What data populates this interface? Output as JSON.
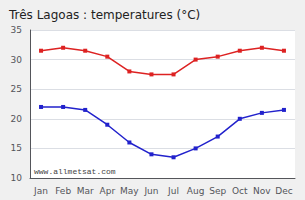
{
  "chart_data": {
    "type": "line",
    "title": "Três Lagoas : temperatures (°C)",
    "categories": [
      "Jan",
      "Feb",
      "Mar",
      "Apr",
      "May",
      "Jun",
      "Jul",
      "Aug",
      "Sep",
      "Oct",
      "Nov",
      "Dec"
    ],
    "series": [
      {
        "color": "#dd2222",
        "values": [
          31.5,
          32.0,
          31.5,
          30.5,
          28.0,
          27.5,
          27.5,
          30.0,
          30.5,
          31.5,
          32.0,
          31.5
        ]
      },
      {
        "color": "#2222cc",
        "values": [
          22.0,
          22.0,
          21.5,
          19.0,
          16.0,
          14.0,
          13.5,
          15.0,
          17.0,
          20.0,
          21.0,
          21.5
        ]
      }
    ],
    "ylim": [
      10,
      35
    ],
    "yticks": [
      10,
      15,
      20,
      25,
      30,
      35
    ],
    "grid": true,
    "marker": "square",
    "annotations": [
      "www.allmetsat.com"
    ]
  }
}
